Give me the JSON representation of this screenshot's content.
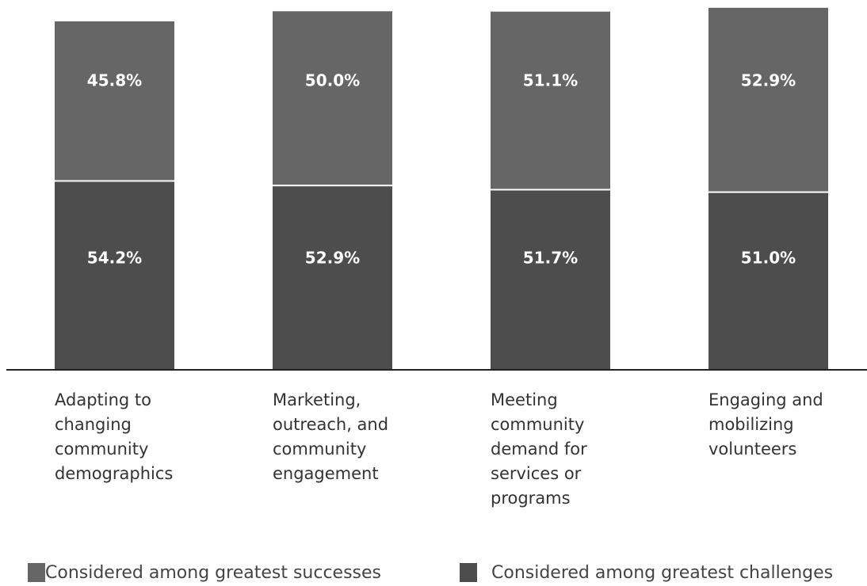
{
  "chart_data": {
    "type": "stacked-bar",
    "categories": [
      "Adapting to changing community demographics",
      "Marketing, outreach, and community engagement",
      "Meeting community demand for services or programs",
      "Engaging and mobilizing volunteers"
    ],
    "series": [
      {
        "name": "Considered among greatest successes",
        "color": "#666666",
        "values": [
          45.8,
          50.0,
          51.1,
          52.9
        ],
        "value_labels": [
          "45.8%",
          "50.0%",
          "51.1%",
          "52.9%"
        ]
      },
      {
        "name": "Considered among greatest challenges",
        "color": "#4d4d4d",
        "values": [
          54.2,
          52.9,
          51.7,
          51.0
        ],
        "value_labels": [
          "54.2%",
          "52.9%",
          "51.7%",
          "51.0%"
        ]
      }
    ]
  }
}
